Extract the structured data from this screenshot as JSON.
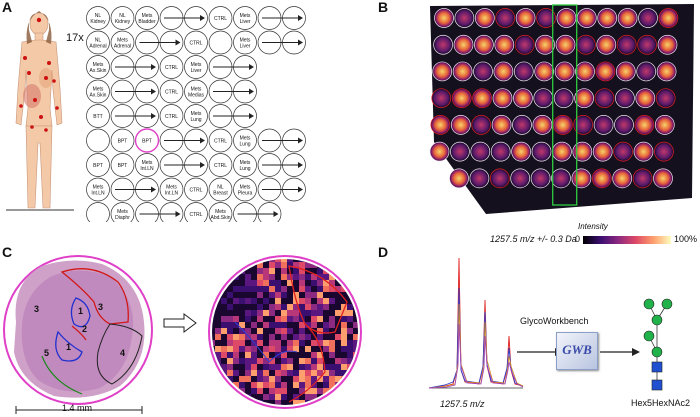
{
  "panels": {
    "a": "A",
    "b": "B",
    "c": "C",
    "d": "D"
  },
  "figure": {
    "patient_count": "17x"
  },
  "tma_rows": [
    [
      {
        "t": [
          "NL",
          "Kidney"
        ]
      },
      {
        "t": [
          "NL",
          "Kidney"
        ]
      },
      {
        "t": [
          "Mets",
          "Bladder"
        ]
      },
      {
        "arrow": true
      },
      {
        "t": [
          "CTRL"
        ]
      },
      {
        "t": [
          "Mets",
          "Liver"
        ]
      },
      {
        "arrow": true
      }
    ],
    [
      {
        "t": [
          "NL",
          "Adrenal"
        ]
      },
      {
        "t": [
          "Mets",
          "Adrenal"
        ]
      },
      {
        "arrow": true
      },
      {
        "t": [
          "CTRL"
        ]
      },
      {
        "t": []
      },
      {
        "t": [
          "Mets",
          "Liver"
        ]
      },
      {
        "arrow": true
      }
    ],
    [
      {
        "t": [
          "Mets",
          "Ax.Skin"
        ]
      },
      {
        "arrow": true
      },
      {
        "t": [
          "CTRL"
        ]
      },
      {
        "t": [
          "Mets",
          "Liver"
        ]
      },
      {
        "arrow": true
      }
    ],
    [
      {
        "t": [
          "Mets",
          "Ax.Skin"
        ]
      },
      {
        "arrow": true
      },
      {
        "t": [
          "CTRL"
        ]
      },
      {
        "t": [
          "Mets",
          "Medias"
        ]
      },
      {
        "arrow": true
      }
    ],
    [
      {
        "t": [
          "BTT"
        ]
      },
      {
        "arrow": true
      },
      {
        "t": [
          "CTRL"
        ]
      },
      {
        "t": [
          "Mets",
          "Lung"
        ]
      },
      {
        "arrow": true
      }
    ],
    [
      {
        "t": []
      },
      {
        "t": [
          "BPT"
        ]
      },
      {
        "t": [
          "BPT"
        ],
        "pink": true
      },
      {
        "arrow": true
      },
      {
        "t": [
          "CTRL"
        ]
      },
      {
        "t": [
          "Mets",
          "Lung"
        ]
      },
      {
        "arrow": true
      }
    ],
    [
      {
        "t": [
          "BPT"
        ]
      },
      {
        "t": [
          "BPT"
        ]
      },
      {
        "t": [
          "Mets",
          "Int.LN"
        ]
      },
      {
        "arrow": true
      },
      {
        "t": [
          "CTRL"
        ]
      },
      {
        "t": [
          "Mets",
          "Lung"
        ]
      },
      {
        "arrow": true
      }
    ],
    [
      {
        "t": [
          "Mets",
          "Int.LN"
        ]
      },
      {
        "arrow": true
      },
      {
        "t": [
          "Mets",
          "Int.LN"
        ]
      },
      {
        "t": [
          "CTRL"
        ]
      },
      {
        "t": [
          "NL",
          "Breast"
        ]
      },
      {
        "t": [
          "Mets",
          "Pleura"
        ]
      },
      {
        "arrow": true
      }
    ],
    [
      {
        "t": []
      },
      {
        "t": [
          "Mets",
          "Diaphr"
        ]
      },
      {
        "arrow": true
      },
      {
        "t": [
          "CTRL"
        ]
      },
      {
        "t": [
          "Mets",
          "Abd.Skin"
        ]
      },
      {
        "arrow": true
      }
    ]
  ],
  "colorbar": {
    "label": "Intensity",
    "caption": "1257.5 m/z +/- 0.3 Da",
    "min": "0",
    "max": "100%"
  },
  "scale_bar": {
    "label": "1.4 mm"
  },
  "regions": [
    "1",
    "2",
    "3",
    "3",
    "1",
    "5",
    "4"
  ],
  "spectrum": {
    "xlabel": "1257.5 m/z"
  },
  "software": {
    "name": "GlycoWorkbench",
    "logo": "GWB"
  },
  "glycan": {
    "name": "Hex5HexNAc2"
  },
  "colors": {
    "pink": "#e040c8",
    "green": "#2ecc40",
    "red": "#e02020"
  }
}
